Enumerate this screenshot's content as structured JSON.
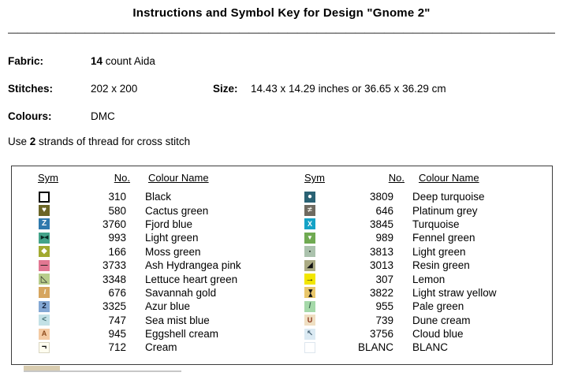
{
  "title": "Instructions and Symbol Key for Design \"Gnome 2\"",
  "divider": "__________________________________________________________",
  "info": {
    "fabric_label": "Fabric:",
    "fabric_value_bold": "14",
    "fabric_value_rest": " count Aida",
    "stitches_label": "Stitches:",
    "stitches_value": "202 x 200",
    "size_label": "Size:",
    "size_value": "14.43 x 14.29 inches or 36.65 x 36.29 cm",
    "colours_label": "Colours:",
    "colours_value": "DMC",
    "strands_prefix": "Use ",
    "strands_bold": "2",
    "strands_suffix": " strands of thread for cross stitch"
  },
  "key_table": {
    "headers": {
      "sym": "Sym",
      "no": "No.",
      "colour_name": "Colour Name"
    },
    "left_rows": [
      {
        "no": "310",
        "name": "Black",
        "sym": {
          "icon": "open-square",
          "glyph": "",
          "fg": "#000000",
          "bg": "#ffffff",
          "border": "#000000",
          "border_w": 2
        }
      },
      {
        "no": "580",
        "name": "Cactus green",
        "sym": {
          "icon": "heart",
          "glyph": "♥",
          "fg": "#ffffff",
          "bg": "#6b6526"
        }
      },
      {
        "no": "3760",
        "name": "Fjord blue",
        "sym": {
          "icon": "letter-z",
          "glyph": "Z",
          "fg": "#ffffff",
          "bg": "#2f79ad"
        }
      },
      {
        "no": "993",
        "name": "Light green",
        "sym": {
          "icon": "bowtie",
          "glyph": "▶◀",
          "fg": "#0a2a24",
          "bg": "#43a389"
        }
      },
      {
        "no": "166",
        "name": "Moss green",
        "sym": {
          "icon": "diamond",
          "glyph": "◆",
          "fg": "#ffffff",
          "bg": "#a2aa30"
        }
      },
      {
        "no": "3733",
        "name": "Ash Hydrangea pink",
        "sym": {
          "icon": "dash",
          "glyph": "—",
          "fg": "#1a1a1a",
          "bg": "#e27792"
        }
      },
      {
        "no": "3348",
        "name": "Lettuce heart green",
        "sym": {
          "icon": "triangle-outline",
          "glyph": "◺",
          "fg": "#222222",
          "bg": "#b8cd8c"
        }
      },
      {
        "no": "676",
        "name": "Savannah gold",
        "sym": {
          "icon": "slashes",
          "glyph": "///",
          "fg": "#f5efdc",
          "bg": "#d6a55e"
        }
      },
      {
        "no": "3325",
        "name": "Azur blue",
        "sym": {
          "icon": "digit-2",
          "glyph": "2",
          "fg": "#14233d",
          "bg": "#84a8d4"
        }
      },
      {
        "no": "747",
        "name": "Sea mist blue",
        "sym": {
          "icon": "less-than",
          "glyph": "<",
          "fg": "#426d72",
          "bg": "#c3e1e6"
        }
      },
      {
        "no": "945",
        "name": "Eggshell cream",
        "sym": {
          "icon": "letter-a",
          "glyph": "A",
          "fg": "#8f4c1d",
          "bg": "#f4cba4"
        }
      },
      {
        "no": "712",
        "name": "Cream",
        "sym": {
          "icon": "not-sign",
          "glyph": "¬",
          "fg": "#000000",
          "bg": "#fffdf0",
          "border": "#d9d6c2",
          "border_w": 1
        }
      }
    ],
    "right_rows": [
      {
        "no": "3809",
        "name": "Deep turquoise",
        "sym": {
          "icon": "circle",
          "glyph": "●",
          "fg": "#ffffff",
          "bg": "#2a6274"
        }
      },
      {
        "no": "646",
        "name": "Platinum grey",
        "sym": {
          "icon": "not-equal",
          "glyph": "≠",
          "fg": "#efeee6",
          "bg": "#6f6a60"
        }
      },
      {
        "no": "3845",
        "name": "Turquoise",
        "sym": {
          "icon": "cross-x",
          "glyph": "X",
          "fg": "#ffffff",
          "bg": "#14a2c6"
        }
      },
      {
        "no": "989",
        "name": "Fennel green",
        "sym": {
          "icon": "triangle-down",
          "glyph": "▼",
          "fg": "#ffffff",
          "bg": "#70aa52"
        }
      },
      {
        "no": "3813",
        "name": "Light green",
        "sym": {
          "icon": "square-dot",
          "glyph": "▪",
          "fg": "#1f2a22",
          "bg": "#abc2ad"
        }
      },
      {
        "no": "3013",
        "name": "Resin green",
        "sym": {
          "icon": "triangle-corner",
          "glyph": "◢",
          "fg": "#111111",
          "bg": "#abab84"
        }
      },
      {
        "no": "307",
        "name": "Lemon",
        "sym": {
          "icon": "arrow-right",
          "glyph": "→",
          "fg": "#111111",
          "bg": "#f2e600"
        }
      },
      {
        "no": "3822",
        "name": "Light straw yellow",
        "sym": {
          "icon": "hourglass",
          "glyph": "▶◀",
          "fg": "#111111",
          "bg": "#e9c76b"
        }
      },
      {
        "no": "955",
        "name": "Pale green",
        "sym": {
          "icon": "slash",
          "glyph": "/",
          "fg": "#3f6a52",
          "bg": "#a5d9a9"
        }
      },
      {
        "no": "739",
        "name": "Dune cream",
        "sym": {
          "icon": "letter-u",
          "glyph": "U",
          "fg": "#8a3318",
          "bg": "#efdfc2"
        }
      },
      {
        "no": "3756",
        "name": "Cloud blue",
        "sym": {
          "icon": "arrow-up-left",
          "glyph": "↖",
          "fg": "#4a6678",
          "bg": "#dbeaf3"
        }
      },
      {
        "no": "BLANC",
        "name": "BLANC",
        "sym": {
          "icon": "blank-square",
          "glyph": "",
          "fg": "#000000",
          "bg": "#ffffff",
          "border": "#dde6ee",
          "border_w": 1
        }
      }
    ]
  }
}
